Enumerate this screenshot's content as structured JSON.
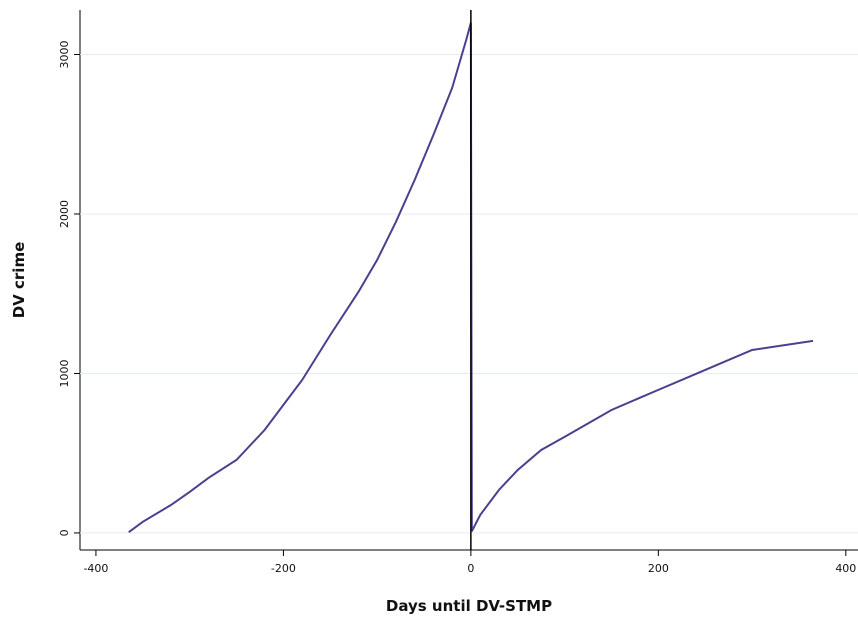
{
  "chart_data": {
    "type": "line",
    "x_label": "Days until DV-STMP",
    "y_label": "DV crime",
    "x": [
      -365,
      -350,
      -320,
      -300,
      -280,
      -250,
      -220,
      -200,
      -180,
      -150,
      -120,
      -100,
      -80,
      -60,
      -40,
      -20,
      -5,
      0,
      1,
      10,
      30,
      50,
      75,
      100,
      150,
      200,
      250,
      300,
      365
    ],
    "series": [
      {
        "color": "#4b3f8f",
        "values": [
          5,
          70,
          175,
          257,
          345,
          458,
          646,
          803,
          959,
          1241,
          1511,
          1712,
          1950,
          2213,
          2495,
          2790,
          3091,
          3200,
          10,
          113,
          270,
          395,
          520,
          602,
          771,
          897,
          1022,
          1147,
          1204
        ]
      }
    ],
    "vline": 0,
    "xlim": [
      -417,
      413
    ],
    "ylim": [
      -107,
      3279
    ],
    "xticks": [
      -400,
      -200,
      0,
      200,
      400
    ],
    "yticks": [
      0,
      1000,
      2000,
      3000
    ],
    "grid": true
  }
}
